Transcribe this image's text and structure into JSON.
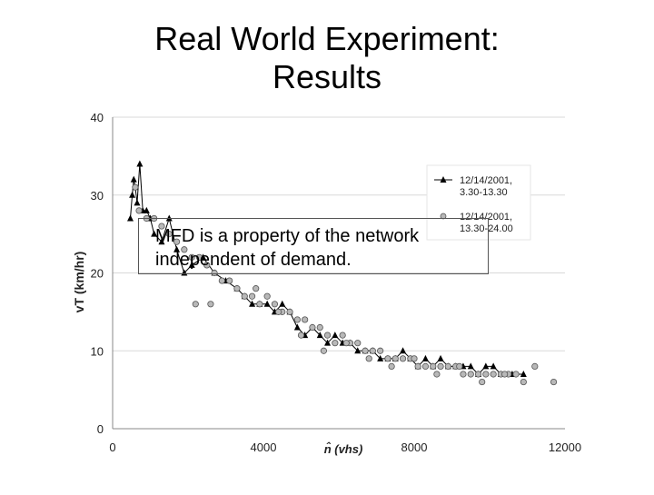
{
  "slide": {
    "title_line1": "Real World Experiment:",
    "title_line2": "Results",
    "callout_line1": "MFD is a property of the network",
    "callout_line2": "independent of demand."
  },
  "chart_data": {
    "type": "scatter",
    "xlabel": "n̂ (vhs)",
    "ylabel": "vT (km/hr)",
    "xlim": [
      0,
      12000
    ],
    "ylim": [
      0,
      40
    ],
    "xticks": [
      0,
      4000,
      8000,
      12000
    ],
    "yticks": [
      0,
      10,
      20,
      30,
      40
    ],
    "grid": "horizontal",
    "legend_position": "top-right",
    "series": [
      {
        "name": "12/14/2001, 3.30-13.30",
        "marker": "triangle",
        "connected": true,
        "color": "#000000",
        "x": [
          470,
          520,
          560,
          600,
          650,
          720,
          800,
          900,
          1000,
          1100,
          1300,
          1500,
          1700,
          1900,
          2100,
          2400,
          2700,
          3000,
          3300,
          3500,
          3700,
          3900,
          4100,
          4300,
          4500,
          4700,
          4900,
          5100,
          5300,
          5500,
          5700,
          5900,
          6100,
          6300,
          6500,
          6700,
          6900,
          7100,
          7300,
          7500,
          7700,
          7900,
          8100,
          8300,
          8500,
          8700,
          8900,
          9100,
          9300,
          9500,
          9700,
          9900,
          10100,
          10300,
          10600,
          10900
        ],
        "y": [
          27,
          30,
          32,
          31,
          29,
          34,
          28,
          28,
          27,
          25,
          24,
          27,
          23,
          20,
          21,
          22,
          20,
          19,
          18,
          17,
          16,
          16,
          16,
          15,
          16,
          15,
          13,
          12,
          13,
          12,
          11,
          12,
          11,
          11,
          10,
          10,
          10,
          9,
          9,
          9,
          10,
          9,
          8,
          9,
          8,
          9,
          8,
          8,
          8,
          8,
          7,
          8,
          8,
          7,
          7,
          7
        ]
      },
      {
        "name": "12/14/2001, 13.30-24.00",
        "marker": "circle",
        "connected": false,
        "color": "#b8b8b8",
        "x": [
          600,
          700,
          900,
          1100,
          1300,
          1500,
          1700,
          1900,
          2100,
          2300,
          2500,
          2700,
          2900,
          3100,
          3300,
          3500,
          3700,
          3900,
          4100,
          4300,
          4500,
          4700,
          4900,
          5100,
          5300,
          5500,
          5700,
          5900,
          6100,
          6300,
          6500,
          6700,
          6900,
          7100,
          7300,
          7500,
          7700,
          7900,
          8100,
          8300,
          8500,
          8700,
          8900,
          9100,
          9300,
          9500,
          9700,
          9900,
          10100,
          10300,
          10500,
          10700,
          10900,
          11200,
          11700,
          2200,
          2600,
          3800,
          4400,
          5000,
          5600,
          6200,
          6800,
          7400,
          8000,
          8600,
          9200,
          9800,
          10400
        ],
        "y": [
          31,
          28,
          27,
          27,
          26,
          25,
          24,
          23,
          22,
          22,
          21,
          20,
          19,
          19,
          18,
          17,
          17,
          16,
          17,
          16,
          15,
          15,
          14,
          14,
          13,
          13,
          12,
          11,
          12,
          11,
          11,
          10,
          10,
          10,
          9,
          9,
          9,
          9,
          8,
          8,
          8,
          8,
          8,
          8,
          7,
          7,
          7,
          7,
          7,
          7,
          7,
          7,
          6,
          8,
          6,
          16,
          16,
          18,
          15,
          12,
          10,
          11,
          9,
          8,
          9,
          7,
          8,
          6,
          7
        ]
      }
    ]
  }
}
